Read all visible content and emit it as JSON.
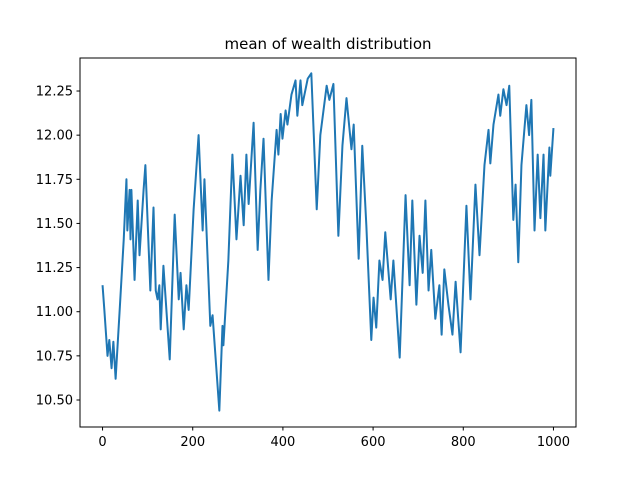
{
  "chart_data": {
    "type": "line",
    "title": "mean of wealth distribution",
    "color": "#1f77b4",
    "x": [
      0,
      4,
      11,
      15,
      20,
      24,
      29,
      38,
      47,
      53,
      55,
      60,
      62,
      64,
      71,
      78,
      82,
      91,
      95,
      106,
      113,
      118,
      122,
      126,
      129,
      135,
      149,
      160,
      169,
      173,
      180,
      186,
      191,
      202,
      213,
      222,
      226,
      239,
      244,
      259,
      266,
      268,
      279,
      288,
      297,
      306,
      313,
      319,
      324,
      335,
      344,
      350,
      357,
      368,
      375,
      386,
      390,
      395,
      399,
      406,
      410,
      419,
      428,
      432,
      439,
      443,
      455,
      463,
      475,
      483,
      497,
      503,
      512,
      523,
      532,
      541,
      552,
      557,
      568,
      576,
      585,
      596,
      601,
      607,
      614,
      621,
      627,
      639,
      645,
      659,
      672,
      681,
      687,
      696,
      703,
      710,
      716,
      723,
      729,
      738,
      747,
      752,
      758,
      767,
      776,
      783,
      794,
      807,
      816,
      827,
      836,
      847,
      856,
      860,
      867,
      878,
      882,
      889,
      896,
      902,
      911,
      916,
      922,
      929,
      940,
      946,
      951,
      958,
      965,
      971,
      978,
      982,
      991,
      993,
      1000
    ],
    "values": [
      11.15,
      11.01,
      10.75,
      10.84,
      10.68,
      10.83,
      10.62,
      11.01,
      11.41,
      11.75,
      11.46,
      11.69,
      11.41,
      11.69,
      11.18,
      11.63,
      11.32,
      11.69,
      11.83,
      11.12,
      11.59,
      11.12,
      11.07,
      11.15,
      10.9,
      11.26,
      10.73,
      11.55,
      11.07,
      11.22,
      10.9,
      11.15,
      11.01,
      11.58,
      12.0,
      11.46,
      11.75,
      10.92,
      10.98,
      10.44,
      10.92,
      10.81,
      11.29,
      11.89,
      11.41,
      11.77,
      11.49,
      11.89,
      11.61,
      12.07,
      11.35,
      11.69,
      11.98,
      11.18,
      11.63,
      12.03,
      11.89,
      12.12,
      11.98,
      12.14,
      12.06,
      12.23,
      12.31,
      12.11,
      12.31,
      12.17,
      12.32,
      12.35,
      11.58,
      12.0,
      12.28,
      12.2,
      12.29,
      11.43,
      11.94,
      12.21,
      11.92,
      12.06,
      11.3,
      11.94,
      11.49,
      10.84,
      11.08,
      10.91,
      11.29,
      11.18,
      11.45,
      11.07,
      11.29,
      10.74,
      11.66,
      11.15,
      11.63,
      11.04,
      11.43,
      11.22,
      11.63,
      11.12,
      11.35,
      10.96,
      11.15,
      10.87,
      11.24,
      11.04,
      10.87,
      11.17,
      10.77,
      11.6,
      11.07,
      11.72,
      11.32,
      11.83,
      12.03,
      11.84,
      12.06,
      12.23,
      12.11,
      12.26,
      12.17,
      12.28,
      11.52,
      11.72,
      11.28,
      11.83,
      12.17,
      12.0,
      12.2,
      11.46,
      11.89,
      11.53,
      11.89,
      11.46,
      11.93,
      11.77,
      12.04
    ],
    "xlim": [
      -50,
      1050
    ],
    "ylim": [
      10.347,
      12.437
    ],
    "xticks": [
      0,
      200,
      400,
      600,
      800,
      1000
    ],
    "yticks": [
      {
        "value": 10.5,
        "label": "10.50"
      },
      {
        "value": 10.75,
        "label": "10.75"
      },
      {
        "value": 11.0,
        "label": "11.00"
      },
      {
        "value": 11.25,
        "label": "11.25"
      },
      {
        "value": 11.5,
        "label": "11.50"
      },
      {
        "value": 11.75,
        "label": "11.75"
      },
      {
        "value": 12.0,
        "label": "12.00"
      },
      {
        "value": 12.25,
        "label": "12.25"
      }
    ]
  }
}
